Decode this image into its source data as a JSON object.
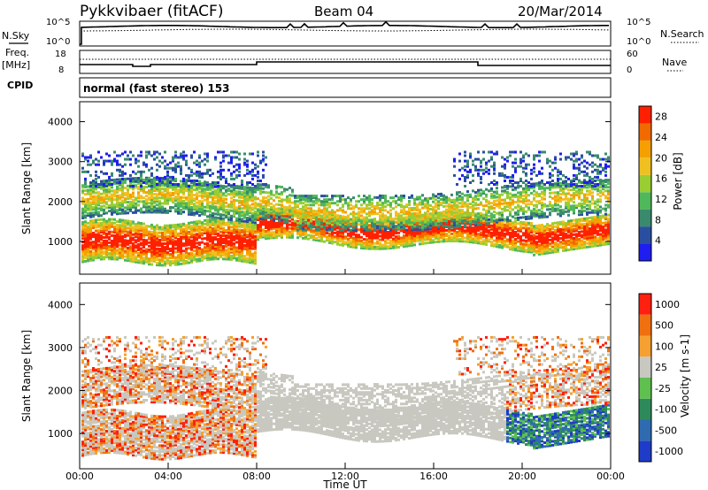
{
  "header": {
    "title": "Pykkvibaer (fitACF)",
    "beam": "Beam 04",
    "date": "20/Mar/2014"
  },
  "top_strips": {
    "nsky_label": "N.Sky",
    "nsky_ticks": [
      "10^5",
      "10^0"
    ],
    "nsearch_label": "N.Search",
    "nsearch_ticks": [
      "10^5",
      "10^0"
    ],
    "freq_label_1": "Freq.",
    "freq_label_2": "[MHz]",
    "freq_ticks": [
      "18",
      "8"
    ],
    "nave_label": "Nave",
    "nave_ticks": [
      "60",
      "0"
    ],
    "cpid_label": "CPID",
    "cpid_value": "normal (fast stereo) 153"
  },
  "chart_data": [
    {
      "type": "heatmap",
      "name": "power",
      "ylabel": "Slant Range [km]",
      "ylim": [
        180,
        4500
      ],
      "yticks": [
        "1000",
        "2000",
        "3000",
        "4000"
      ],
      "colorbar_label": "Power [dB]",
      "colorbar_ticks": [
        "4",
        "8",
        "12",
        "16",
        "20",
        "24",
        "28"
      ],
      "colorbar_range": [
        0,
        30
      ],
      "colors": [
        "#1e1ef0",
        "#2b4fa0",
        "#3a8a6e",
        "#4fb85a",
        "#9acd32",
        "#f0c020",
        "#f5a000",
        "#f06a00",
        "#ff2000"
      ]
    },
    {
      "type": "heatmap",
      "name": "velocity",
      "ylabel": "Slant Range [km]",
      "ylim": [
        180,
        4500
      ],
      "yticks": [
        "1000",
        "2000",
        "3000",
        "4000"
      ],
      "colorbar_label": "Velocity [m s-1]",
      "colorbar_ticks": [
        "1000",
        "500",
        "100",
        "25",
        "-25",
        "-100",
        "-500",
        "-1000"
      ],
      "colors": [
        "#1e3cc8",
        "#2f6bb0",
        "#2e8a5a",
        "#5fc050",
        "#c8c8c0",
        "#f5a030",
        "#f07010",
        "#ff2010"
      ]
    }
  ],
  "xaxis": {
    "label": "Time UT",
    "ticks": [
      "00:00",
      "04:00",
      "08:00",
      "12:00",
      "16:00",
      "20:00",
      "00:00"
    ]
  }
}
